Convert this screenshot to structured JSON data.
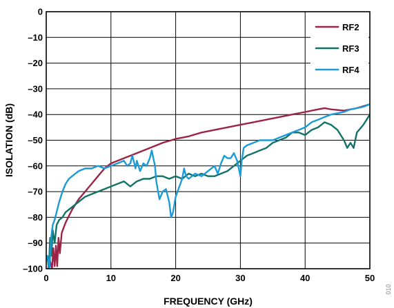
{
  "chart_data": {
    "type": "line",
    "xlabel": "FREQUENCY (GHz)",
    "ylabel": "ISOLATION (dB)",
    "xlim": [
      0,
      50
    ],
    "ylim": [
      -100,
      0
    ],
    "x_ticks": [
      "0",
      "10",
      "20",
      "30",
      "40",
      "50"
    ],
    "y_ticks": [
      "0",
      "–10",
      "–20",
      "–30",
      "–40",
      "–50",
      "–60",
      "–70",
      "–80",
      "–90",
      "–100"
    ],
    "grid": true,
    "legend_position": "top-right",
    "figure_id": "010",
    "series": [
      {
        "name": "RF2",
        "color": "#9b2446",
        "x": [
          0.3,
          0.6,
          0.9,
          1.1,
          1.3,
          1.5,
          1.7,
          1.9,
          2.1,
          2.4,
          3,
          4,
          5,
          6,
          7,
          8,
          9,
          10,
          12,
          14,
          16,
          18,
          20,
          22,
          24,
          26,
          28,
          30,
          32,
          34,
          36,
          38,
          40,
          42,
          43,
          44,
          46,
          48,
          50
        ],
        "y": [
          -100,
          -97,
          -100,
          -92,
          -99,
          -91,
          -99,
          -88,
          -94,
          -86,
          -82,
          -77,
          -73,
          -70,
          -67,
          -64,
          -61,
          -59,
          -57,
          -55,
          -53,
          -51,
          -49.5,
          -48.5,
          -47,
          -46,
          -45,
          -44,
          -43,
          -42,
          -41,
          -40,
          -39,
          -38,
          -37.5,
          -38,
          -38.5,
          -37.5,
          -36
        ]
      },
      {
        "name": "RF3",
        "color": "#117368",
        "x": [
          0.2,
          0.4,
          0.6,
          0.8,
          1,
          1.3,
          1.6,
          2,
          2.5,
          3,
          4,
          5,
          6,
          7,
          8,
          9,
          10,
          11,
          12,
          13,
          14,
          15,
          16,
          17,
          18,
          19,
          20,
          21,
          22,
          23,
          24,
          25,
          26,
          27,
          28,
          29,
          30,
          31,
          32,
          33,
          34,
          35,
          36,
          37,
          38,
          39,
          40,
          41,
          42,
          43,
          44,
          45,
          46,
          46.5,
          47,
          47.5,
          48,
          49,
          50
        ],
        "y": [
          -96,
          -100,
          -88,
          -95,
          -85,
          -90,
          -83,
          -81,
          -80,
          -78,
          -76,
          -74,
          -72,
          -71,
          -70,
          -69,
          -68,
          -67,
          -66,
          -68,
          -66,
          -65,
          -65,
          -64,
          -64,
          -65,
          -64,
          -65,
          -63,
          -64,
          -63,
          -64,
          -64,
          -63,
          -62,
          -60,
          -58,
          -56,
          -55,
          -54,
          -53,
          -51,
          -50,
          -49,
          -47,
          -47,
          -48,
          -46,
          -45,
          -43,
          -44,
          -46,
          -50,
          -53,
          -51,
          -53,
          -47,
          -44,
          -40
        ]
      },
      {
        "name": "RF4",
        "color": "#1a9bd7",
        "x": [
          0.2,
          0.5,
          0.8,
          1,
          1.3,
          1.6,
          2,
          2.5,
          3,
          3.5,
          4,
          5,
          6,
          7,
          8,
          9,
          10,
          11,
          12,
          12.5,
          13,
          13.3,
          13.8,
          14,
          14.5,
          15,
          15.5,
          16,
          16.3,
          16.8,
          17,
          17.5,
          18,
          18.5,
          19,
          19.3,
          19.6,
          20,
          21,
          21.3,
          21.6,
          22,
          23,
          24,
          25,
          26,
          26.5,
          27,
          27.5,
          28,
          28.5,
          29,
          29.5,
          30,
          30.2,
          30.5,
          31,
          32,
          33,
          34,
          35,
          36,
          37,
          38,
          39,
          40,
          41,
          42,
          43,
          44,
          45,
          46,
          47,
          48,
          49,
          50
        ],
        "y": [
          -95,
          -100,
          -87,
          -83,
          -81,
          -78,
          -74,
          -70,
          -67,
          -65,
          -64,
          -62,
          -61,
          -61,
          -60,
          -61,
          -60,
          -59,
          -58,
          -60,
          -59,
          -56,
          -61,
          -58,
          -62,
          -59,
          -60,
          -57,
          -54,
          -60,
          -66,
          -73,
          -70,
          -69,
          -74,
          -80,
          -78,
          -72,
          -65,
          -61,
          -64,
          -65,
          -63,
          -64,
          -62,
          -60,
          -63,
          -59,
          -56,
          -57,
          -57,
          -55,
          -58,
          -64,
          -58,
          -53,
          -52,
          -51,
          -50,
          -50,
          -50,
          -49,
          -48,
          -47,
          -46,
          -45,
          -43,
          -42,
          -41,
          -40,
          -39.5,
          -39,
          -38,
          -37.5,
          -37,
          -36
        ]
      }
    ]
  }
}
